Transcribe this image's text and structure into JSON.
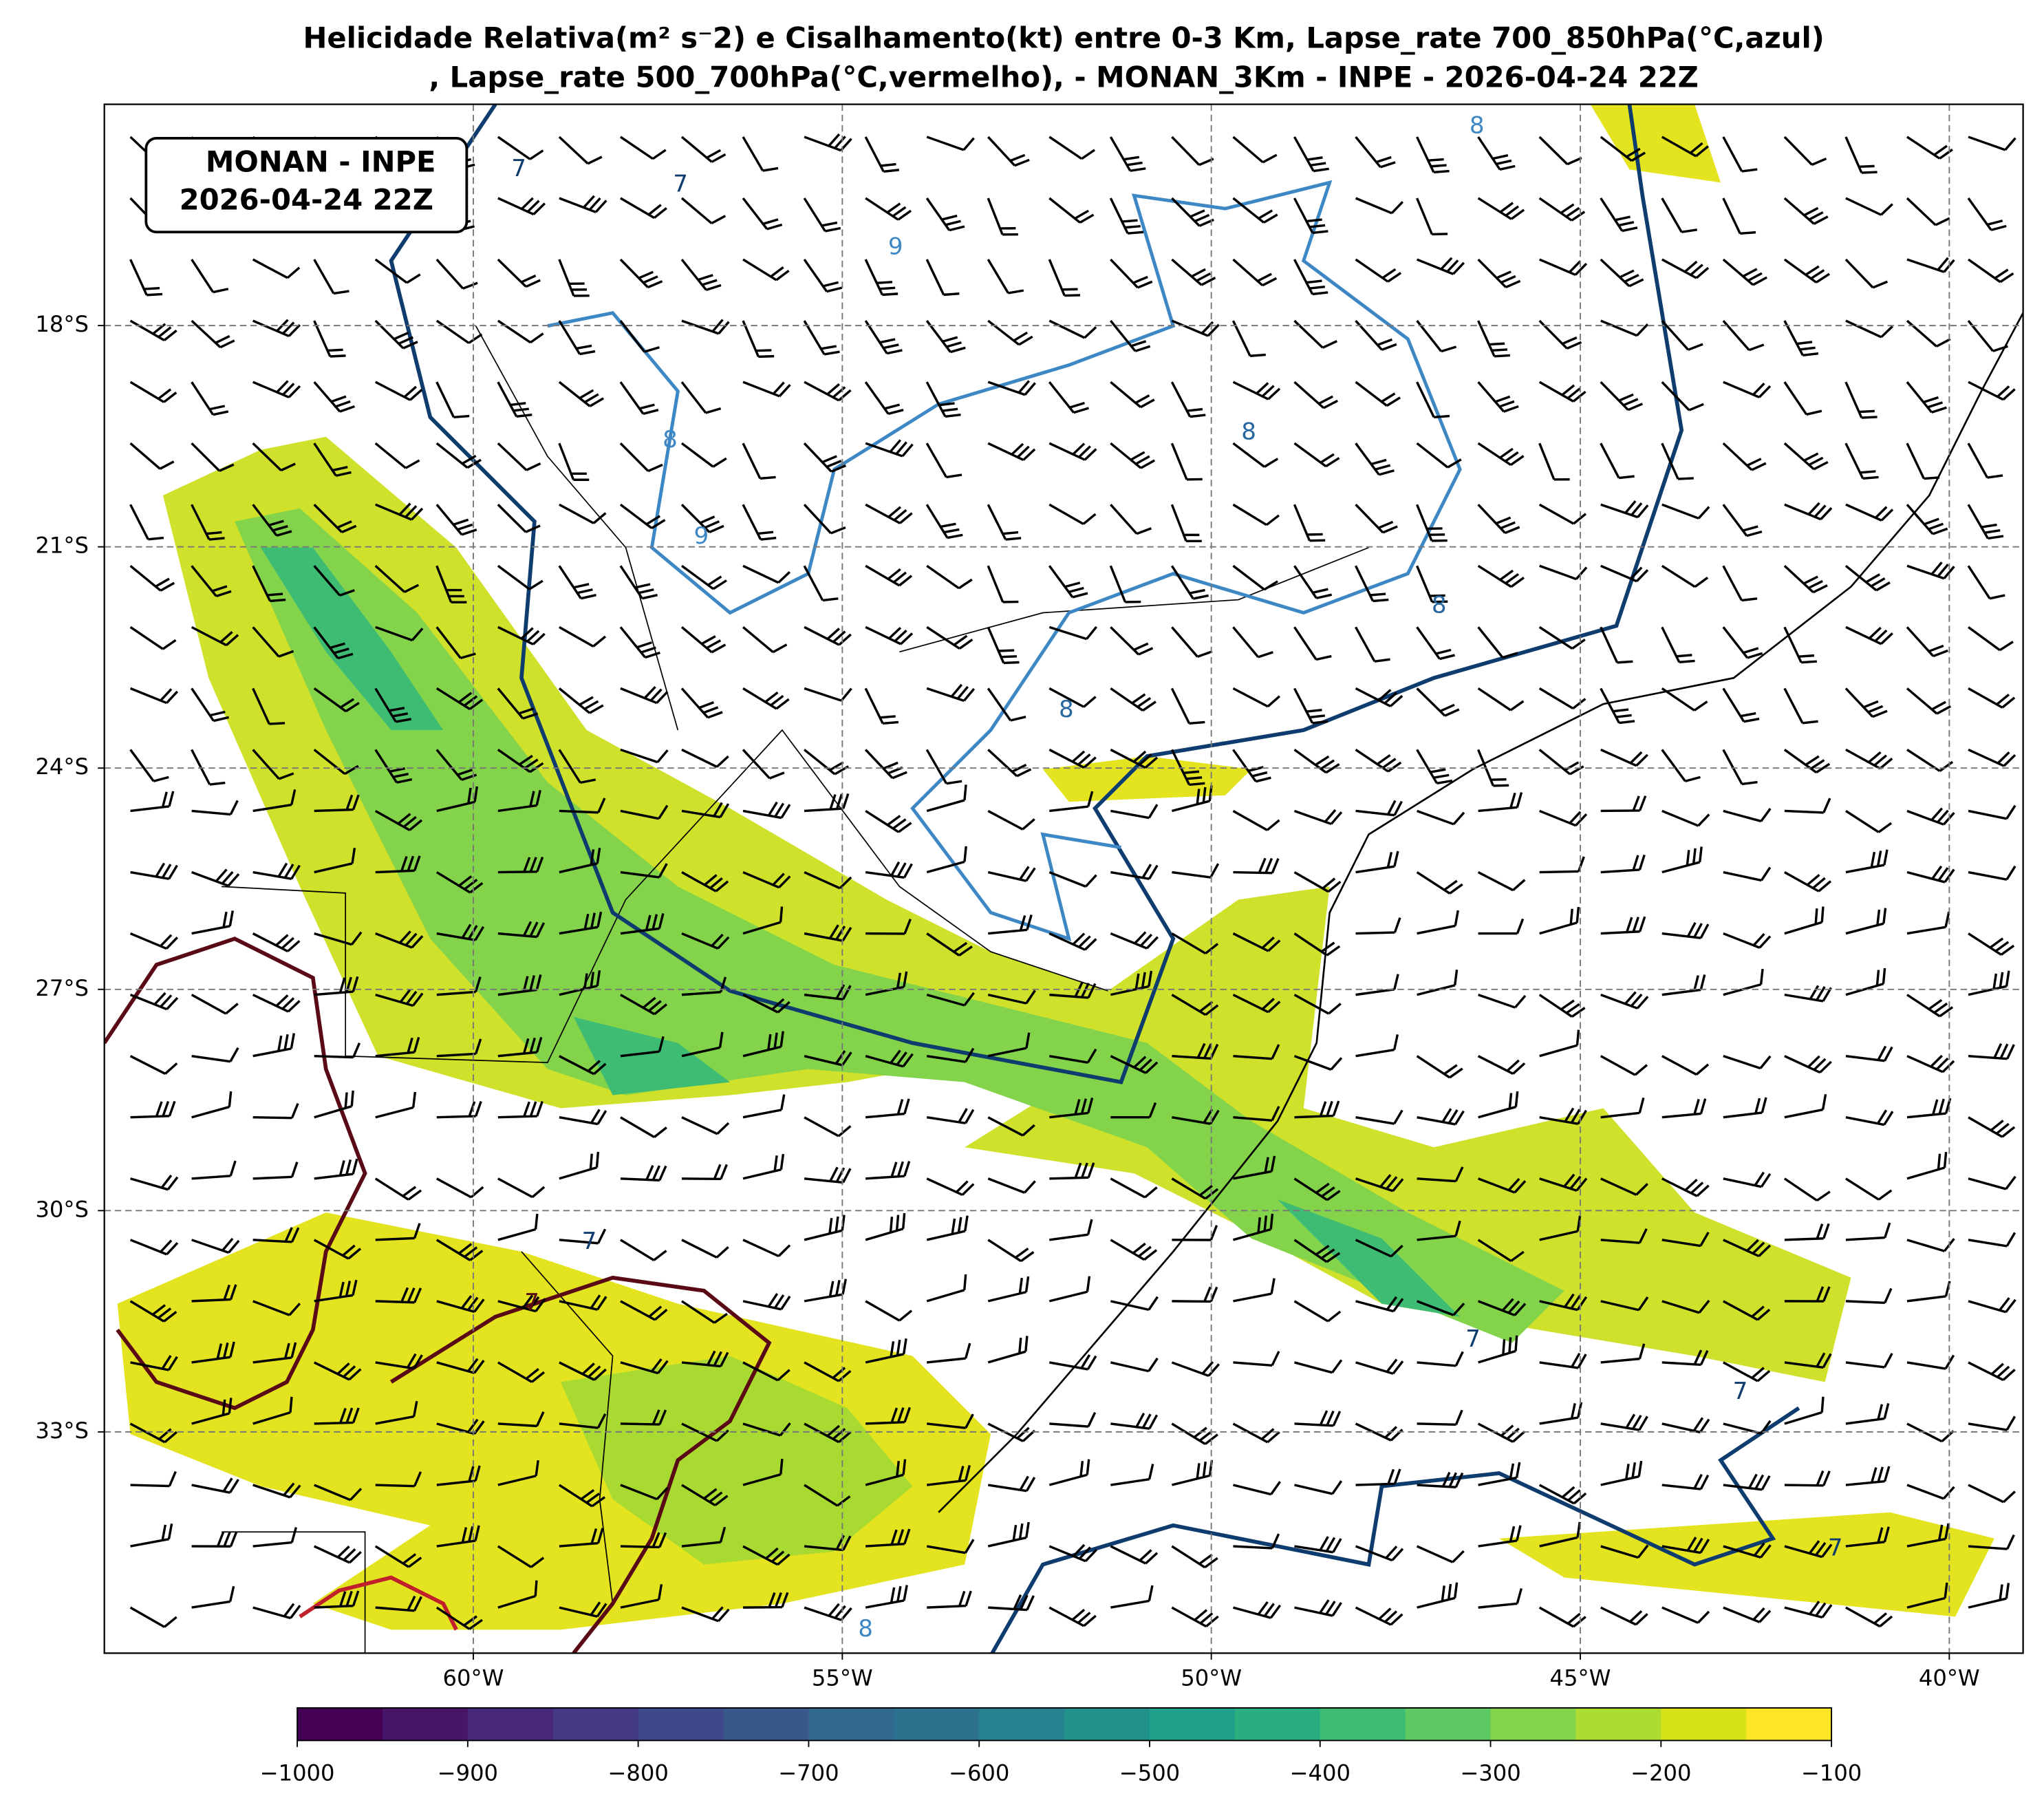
{
  "title": [
    "Helicidade Relativa(m² s⁻2) e Cisalhamento(kt) entre 0-3 Km, Lapse_rate 700_850hPa(°C,azul)",
    ", Lapse_rate 500_700hPa(°C,vermelho),  - MONAN_3Km - INPE - 2026-04-24 22Z"
  ],
  "annotation": [
    "MONAN - INPE",
    "2026-04-24 22Z"
  ],
  "map": {
    "xlim": [
      -65,
      -39
    ],
    "ylim": [
      -36,
      -15
    ],
    "grid": true,
    "xticks": [
      {
        "value": -60,
        "label": "60°W"
      },
      {
        "value": -55,
        "label": "55°W"
      },
      {
        "value": -50,
        "label": "50°W"
      },
      {
        "value": -45,
        "label": "45°W"
      },
      {
        "value": -40,
        "label": "40°W"
      }
    ],
    "yticks": [
      {
        "value": -18,
        "label": "18°S"
      },
      {
        "value": -21,
        "label": "21°S"
      },
      {
        "value": -24,
        "label": "24°S"
      },
      {
        "value": -27,
        "label": "27°S"
      },
      {
        "value": -30,
        "label": "30°S"
      },
      {
        "value": -33,
        "label": "33°S"
      }
    ],
    "contour_labels": [
      "7",
      "7",
      "8",
      "8",
      "9",
      "9",
      "8",
      "8",
      "8",
      "7",
      "7",
      "7",
      "7",
      "7",
      "8"
    ]
  },
  "colorbar": {
    "lim": [
      -1000,
      -100
    ],
    "colors": [
      "#440154",
      "#481668",
      "#482878",
      "#443983",
      "#3e4989",
      "#38588c",
      "#31688e",
      "#2c728e",
      "#26828e",
      "#21918c",
      "#1fa088",
      "#28ae80",
      "#3fbc73",
      "#5ec962",
      "#84d44b",
      "#addc30",
      "#d8e219",
      "#fde725"
    ],
    "ticks": [
      {
        "value": -1000,
        "label": "−1000"
      },
      {
        "value": -900,
        "label": "−900"
      },
      {
        "value": -800,
        "label": "−800"
      },
      {
        "value": -700,
        "label": "−700"
      },
      {
        "value": -600,
        "label": "−600"
      },
      {
        "value": -500,
        "label": "−500"
      },
      {
        "value": -400,
        "label": "−400"
      },
      {
        "value": -300,
        "label": "−300"
      },
      {
        "value": -200,
        "label": "−200"
      },
      {
        "value": -100,
        "label": "−100"
      }
    ]
  }
}
